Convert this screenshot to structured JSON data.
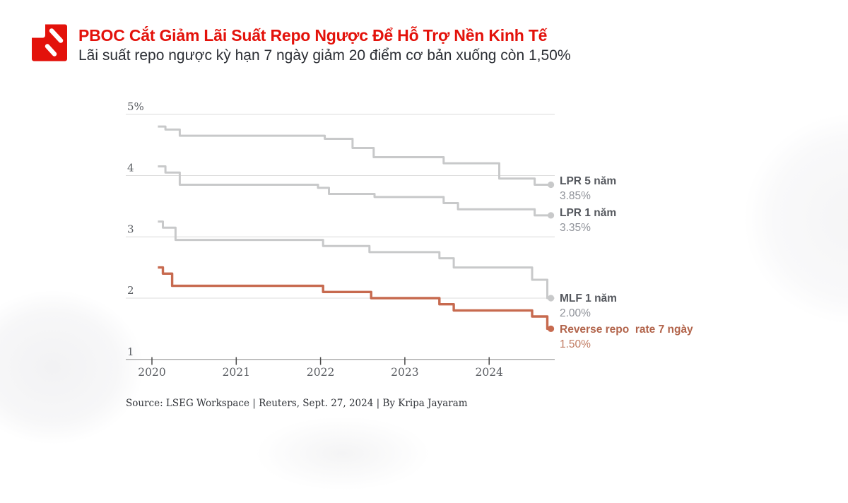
{
  "header": {
    "title": "PBOC Cắt Giảm Lãi Suất Repo Ngược Để Hỗ Trợ Nền Kinh Tế",
    "subtitle": "Lãi suất repo ngược kỳ hạn 7 ngày giảm 20 điểm cơ bản xuống còn 1,50%",
    "accent_color": "#e3120b"
  },
  "chart_data": {
    "type": "line",
    "line_style": "step-after",
    "title": "",
    "xlabel": "",
    "ylabel": "",
    "x_domain": [
      2019.7,
      2024.78
    ],
    "x_end": 2024.72,
    "y_ticks": [
      {
        "value": 5,
        "label": "5%"
      },
      {
        "value": 4,
        "label": "4"
      },
      {
        "value": 3,
        "label": "3"
      },
      {
        "value": 2,
        "label": "2"
      },
      {
        "value": 1,
        "label": "1"
      }
    ],
    "x_ticks": [
      {
        "value": 2020,
        "label": "2020"
      },
      {
        "value": 2021,
        "label": "2021"
      },
      {
        "value": 2022,
        "label": "2022"
      },
      {
        "value": 2023,
        "label": "2023"
      },
      {
        "value": 2024,
        "label": "2024"
      }
    ],
    "grid_color": "#dcdcdc",
    "axis_color": "#a3a3a3",
    "tick_label_color": "#5d6065",
    "legend_position": "end-of-line labels at right",
    "series": [
      {
        "name": "LPR 5 năm",
        "display_value": "3.85%",
        "color": "#c8c9ca",
        "width": 3,
        "points": [
          [
            2020.07,
            4.8
          ],
          [
            2020.16,
            4.75
          ],
          [
            2020.33,
            4.65
          ],
          [
            2022.05,
            4.6
          ],
          [
            2022.38,
            4.45
          ],
          [
            2022.63,
            4.3
          ],
          [
            2023.46,
            4.2
          ],
          [
            2024.12,
            3.95
          ],
          [
            2024.54,
            3.85
          ]
        ]
      },
      {
        "name": "LPR 1 năm",
        "display_value": "3.35%",
        "color": "#c8c9ca",
        "width": 3,
        "points": [
          [
            2020.07,
            4.15
          ],
          [
            2020.16,
            4.05
          ],
          [
            2020.33,
            3.85
          ],
          [
            2021.97,
            3.8
          ],
          [
            2022.1,
            3.7
          ],
          [
            2022.64,
            3.65
          ],
          [
            2023.46,
            3.55
          ],
          [
            2023.63,
            3.45
          ],
          [
            2024.54,
            3.35
          ]
        ]
      },
      {
        "name": "MLF 1 năm",
        "display_value": "2.00%",
        "color": "#c8c9ca",
        "width": 3,
        "points": [
          [
            2020.07,
            3.25
          ],
          [
            2020.13,
            3.15
          ],
          [
            2020.28,
            2.95
          ],
          [
            2022.03,
            2.85
          ],
          [
            2022.58,
            2.75
          ],
          [
            2023.41,
            2.65
          ],
          [
            2023.58,
            2.5
          ],
          [
            2024.51,
            2.3
          ],
          [
            2024.69,
            2.0
          ]
        ]
      },
      {
        "name": "Reverse repo  rate 7 ngày",
        "display_value": "1.50%",
        "color": "#c76a4f",
        "width": 3.4,
        "points": [
          [
            2020.07,
            2.5
          ],
          [
            2020.13,
            2.4
          ],
          [
            2020.24,
            2.2
          ],
          [
            2022.03,
            2.1
          ],
          [
            2022.6,
            2.0
          ],
          [
            2023.41,
            1.9
          ],
          [
            2023.58,
            1.8
          ],
          [
            2024.51,
            1.7
          ],
          [
            2024.69,
            1.5
          ]
        ]
      }
    ]
  },
  "footer": {
    "source": "Source: LSEG Workspace | Reuters, Sept. 27, 2024 | By Kripa Jayaram"
  }
}
